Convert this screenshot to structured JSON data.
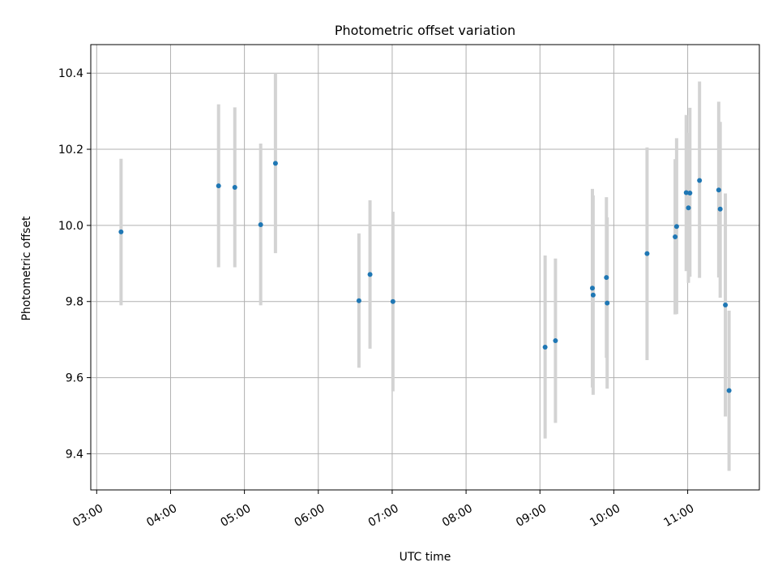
{
  "chart_data": {
    "type": "scatter",
    "title": "Photometric offset variation",
    "xlabel": "UTC time",
    "ylabel": "Photometric offset",
    "x_unit": "hours (UTC)",
    "xlim": [
      2.92,
      11.97
    ],
    "ylim": [
      9.305,
      10.475
    ],
    "grid": true,
    "x_ticks": [
      {
        "value": 3,
        "label": "03:00"
      },
      {
        "value": 4,
        "label": "04:00"
      },
      {
        "value": 5,
        "label": "05:00"
      },
      {
        "value": 6,
        "label": "06:00"
      },
      {
        "value": 7,
        "label": "07:00"
      },
      {
        "value": 8,
        "label": "08:00"
      },
      {
        "value": 9,
        "label": "09:00"
      },
      {
        "value": 10,
        "label": "10:00"
      },
      {
        "value": 11,
        "label": "11:00"
      }
    ],
    "y_ticks": [
      {
        "value": 9.4,
        "label": "9.4"
      },
      {
        "value": 9.6,
        "label": "9.6"
      },
      {
        "value": 9.8,
        "label": "9.8"
      },
      {
        "value": 10.0,
        "label": "10.0"
      },
      {
        "value": 10.2,
        "label": "10.2"
      },
      {
        "value": 10.4,
        "label": "10.4"
      }
    ],
    "colors": {
      "point": "#1f77b4",
      "errorbar": "#d3d3d3",
      "grid": "#b0b0b0"
    },
    "points": [
      {
        "x": 3.33,
        "y": 9.983,
        "ylow": 9.79,
        "yhigh": 10.175
      },
      {
        "x": 4.65,
        "y": 10.104,
        "ylow": 9.89,
        "yhigh": 10.318
      },
      {
        "x": 4.87,
        "y": 10.1,
        "ylow": 9.89,
        "yhigh": 10.31
      },
      {
        "x": 5.22,
        "y": 10.002,
        "ylow": 9.79,
        "yhigh": 10.215
      },
      {
        "x": 5.42,
        "y": 10.163,
        "ylow": 9.927,
        "yhigh": 10.4
      },
      {
        "x": 6.55,
        "y": 9.802,
        "ylow": 9.626,
        "yhigh": 9.979
      },
      {
        "x": 6.7,
        "y": 9.871,
        "ylow": 9.676,
        "yhigh": 10.066
      },
      {
        "x": 7.01,
        "y": 9.8,
        "ylow": 9.564,
        "yhigh": 10.036
      },
      {
        "x": 9.07,
        "y": 9.68,
        "ylow": 9.44,
        "yhigh": 9.921
      },
      {
        "x": 9.21,
        "y": 9.697,
        "ylow": 9.481,
        "yhigh": 9.913
      },
      {
        "x": 9.71,
        "y": 9.835,
        "ylow": 9.574,
        "yhigh": 10.096
      },
      {
        "x": 9.72,
        "y": 9.817,
        "ylow": 9.555,
        "yhigh": 10.079
      },
      {
        "x": 9.9,
        "y": 9.863,
        "ylow": 9.652,
        "yhigh": 10.074
      },
      {
        "x": 9.91,
        "y": 9.796,
        "ylow": 9.571,
        "yhigh": 10.021
      },
      {
        "x": 10.45,
        "y": 9.926,
        "ylow": 9.646,
        "yhigh": 10.205
      },
      {
        "x": 10.83,
        "y": 9.97,
        "ylow": 9.766,
        "yhigh": 10.174
      },
      {
        "x": 10.85,
        "y": 9.997,
        "ylow": 9.767,
        "yhigh": 10.229
      },
      {
        "x": 10.98,
        "y": 10.086,
        "ylow": 9.88,
        "yhigh": 10.29
      },
      {
        "x": 11.01,
        "y": 10.046,
        "ylow": 9.849,
        "yhigh": 10.243
      },
      {
        "x": 11.03,
        "y": 10.085,
        "ylow": 9.865,
        "yhigh": 10.309
      },
      {
        "x": 11.16,
        "y": 10.118,
        "ylow": 9.862,
        "yhigh": 10.378
      },
      {
        "x": 11.42,
        "y": 10.093,
        "ylow": 9.863,
        "yhigh": 10.325
      },
      {
        "x": 11.44,
        "y": 10.043,
        "ylow": 9.81,
        "yhigh": 10.272
      },
      {
        "x": 11.51,
        "y": 9.791,
        "ylow": 9.498,
        "yhigh": 10.084
      },
      {
        "x": 11.56,
        "y": 9.566,
        "ylow": 9.355,
        "yhigh": 9.776
      }
    ]
  }
}
